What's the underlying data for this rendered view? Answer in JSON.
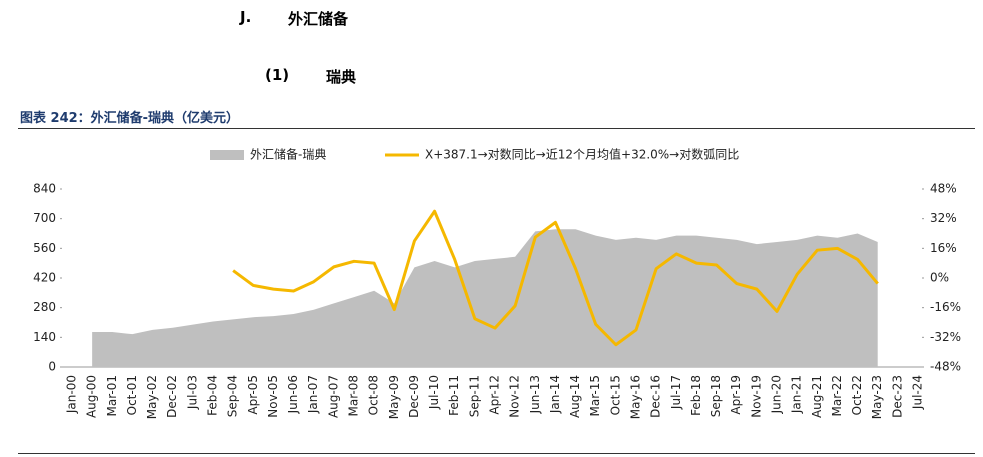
{
  "section": {
    "number": "J.",
    "title": "外汇储备"
  },
  "subsection": {
    "number": "(1)",
    "title": "瑞典"
  },
  "chart_data": {
    "type": "area-line",
    "title": "图表 242：外汇储备-瑞典（亿美元）",
    "categories": [
      "Jan-00",
      "Aug-00",
      "Mar-01",
      "Oct-01",
      "May-02",
      "Dec-02",
      "Jul-03",
      "Feb-04",
      "Sep-04",
      "Apr-05",
      "Nov-05",
      "Jun-06",
      "Jan-07",
      "Aug-07",
      "Mar-08",
      "Oct-08",
      "May-09",
      "Dec-09",
      "Jul-10",
      "Feb-11",
      "Sep-11",
      "Apr-12",
      "Nov-12",
      "Jun-13",
      "Jan-14",
      "Aug-14",
      "Mar-15",
      "Oct-15",
      "May-16",
      "Dec-16",
      "Jul-17",
      "Feb-18",
      "Sep-18",
      "Apr-19",
      "Nov-19",
      "Jun-20",
      "Jan-21",
      "Aug-21",
      "Mar-22",
      "Oct-22",
      "May-23",
      "Dec-23",
      "Jul-24"
    ],
    "series": [
      {
        "name": "外汇储备-瑞典",
        "color": "#bfbfbf",
        "kind": "area",
        "axis": "y",
        "values": [
          null,
          165,
          165,
          155,
          175,
          185,
          200,
          215,
          225,
          235,
          240,
          250,
          270,
          300,
          330,
          360,
          300,
          470,
          500,
          470,
          500,
          510,
          520,
          640,
          650,
          650,
          620,
          600,
          610,
          600,
          620,
          620,
          610,
          600,
          580,
          590,
          600,
          620,
          610,
          630,
          590,
          null,
          null
        ]
      },
      {
        "name": "X+387.1→对数同比→近12个月均值+32.0%→对数弧同比",
        "color": "#f5b800",
        "kind": "line",
        "axis": "y2",
        "values": [
          null,
          null,
          null,
          null,
          null,
          null,
          null,
          null,
          4,
          -4,
          -6,
          -7,
          -2,
          6,
          9,
          8,
          -17,
          20,
          36,
          10,
          -22,
          -27,
          -15,
          22,
          30,
          5,
          -25,
          -36,
          -28,
          5,
          13,
          8,
          7,
          -3,
          -6,
          -18,
          2,
          15,
          16,
          10,
          -3,
          null,
          null
        ]
      }
    ],
    "ylim": [
      0,
      840
    ],
    "yticks": [
      0,
      140,
      280,
      420,
      560,
      700,
      840
    ],
    "y2lim": [
      -48,
      48
    ],
    "y2ticks": [
      {
        "value": -48,
        "label": "-48%"
      },
      {
        "value": -32,
        "label": "-32%"
      },
      {
        "value": -16,
        "label": "-16%"
      },
      {
        "value": 0,
        "label": "0%"
      },
      {
        "value": 16,
        "label": "16%"
      },
      {
        "value": 32,
        "label": "32%"
      },
      {
        "value": 48,
        "label": "48%"
      }
    ],
    "legend": "top"
  }
}
